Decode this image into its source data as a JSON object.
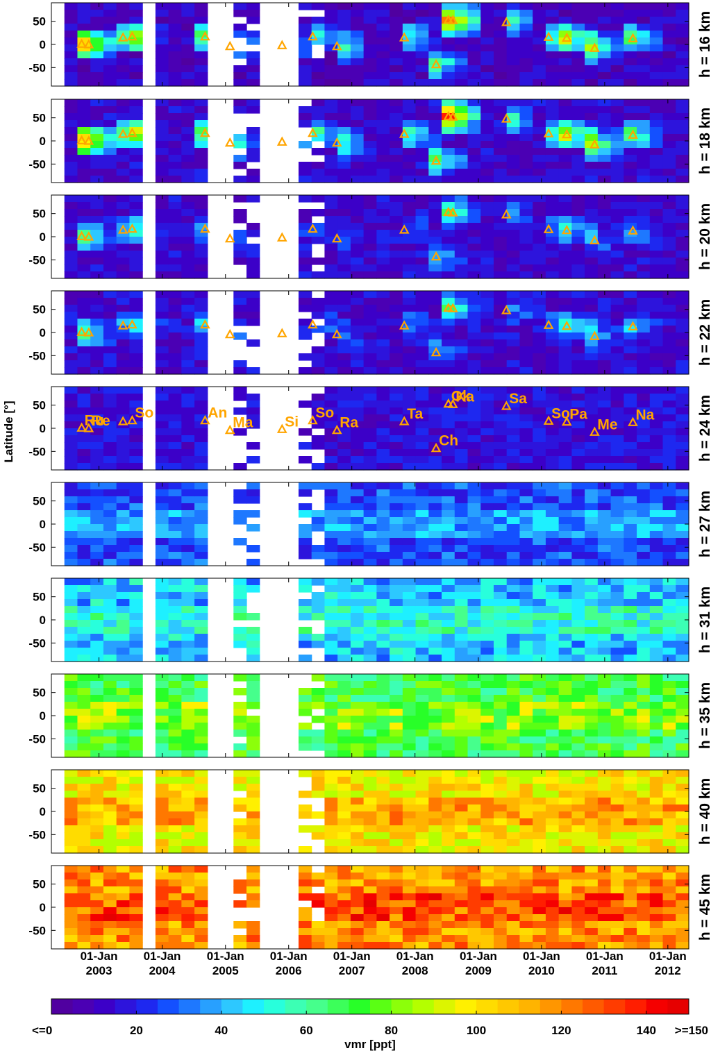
{
  "chart_data": {
    "type": "heatmap",
    "y_axis_label": "Latitude [°]",
    "y_ticks": [
      50,
      0,
      -50
    ],
    "y_range": [
      -90,
      90
    ],
    "x_range": [
      "2002-04-01",
      "2012-05-01"
    ],
    "x_ticks": [
      {
        "date": "2003-01-01",
        "label_top": "01-Jan",
        "label_bottom": "2003"
      },
      {
        "date": "2004-01-01",
        "label_top": "01-Jan",
        "label_bottom": "2004"
      },
      {
        "date": "2005-01-01",
        "label_top": "01-Jan",
        "label_bottom": "2005"
      },
      {
        "date": "2006-01-01",
        "label_top": "01-Jan",
        "label_bottom": "2006"
      },
      {
        "date": "2007-01-01",
        "label_top": "01-Jan",
        "label_bottom": "2007"
      },
      {
        "date": "2008-01-01",
        "label_top": "01-Jan",
        "label_bottom": "2008"
      },
      {
        "date": "2009-01-01",
        "label_top": "01-Jan",
        "label_bottom": "2009"
      },
      {
        "date": "2010-01-01",
        "label_top": "01-Jan",
        "label_bottom": "2010"
      },
      {
        "date": "2011-01-01",
        "label_top": "01-Jan",
        "label_bottom": "2011"
      },
      {
        "date": "2012-01-01",
        "label_top": "01-Jan",
        "label_bottom": "2012"
      }
    ],
    "panels": [
      {
        "label": "h = 16 km",
        "altitude_km": 16
      },
      {
        "label": "h = 18 km",
        "altitude_km": 18
      },
      {
        "label": "h = 20 km",
        "altitude_km": 20
      },
      {
        "label": "h = 22 km",
        "altitude_km": 22
      },
      {
        "label": "h = 24 km",
        "altitude_km": 24
      },
      {
        "label": "h = 27 km",
        "altitude_km": 27
      },
      {
        "label": "h = 31 km",
        "altitude_km": 31
      },
      {
        "label": "h = 35 km",
        "altitude_km": 35
      },
      {
        "label": "h = 40 km",
        "altitude_km": 40
      },
      {
        "label": "h = 45 km",
        "altitude_km": 45
      }
    ],
    "labeled_panel_altitude_km": 24,
    "marker_color": "#ffa500",
    "volcano_events": [
      {
        "label": "Ru",
        "date": "2002-09-23",
        "lat": 1
      },
      {
        "label": "Re",
        "date": "2002-11-03",
        "lat": 0
      },
      {
        "label": "",
        "date": "2003-05-20",
        "lat": 15
      },
      {
        "label": "So",
        "date": "2003-07-12",
        "lat": 17
      },
      {
        "label": "An",
        "date": "2004-09-05",
        "lat": 17
      },
      {
        "label": "Ma",
        "date": "2005-01-27",
        "lat": -4
      },
      {
        "label": "Si",
        "date": "2005-11-24",
        "lat": -2
      },
      {
        "label": "So",
        "date": "2006-05-20",
        "lat": 17
      },
      {
        "label": "Ra",
        "date": "2006-10-07",
        "lat": -4
      },
      {
        "label": "Ta",
        "date": "2007-10-31",
        "lat": 15
      },
      {
        "label": "Ch",
        "date": "2008-05-02",
        "lat": -43
      },
      {
        "label": "Ok",
        "date": "2008-07-12",
        "lat": 53
      },
      {
        "label": "Ka",
        "date": "2008-08-07",
        "lat": 52
      },
      {
        "label": "Sa",
        "date": "2009-06-12",
        "lat": 48
      },
      {
        "label": "So",
        "date": "2010-02-11",
        "lat": 16
      },
      {
        "label": "Pa",
        "date": "2010-05-27",
        "lat": 14
      },
      {
        "label": "Me",
        "date": "2010-11-04",
        "lat": -8
      },
      {
        "label": "Na",
        "date": "2011-06-13",
        "lat": 13
      }
    ],
    "gaps": [
      [
        "2002-04-01",
        "2002-07-10"
      ],
      [
        "2003-09-15",
        "2003-11-15"
      ],
      [
        "2004-09-01",
        "2005-01-10"
      ],
      [
        "2005-08-05",
        "2006-03-25"
      ]
    ],
    "colorbar": {
      "min": 0,
      "max": 150,
      "step": 5,
      "ticks": [
        {
          "value": 0,
          "label": "<=0"
        },
        {
          "value": 20,
          "label": "20"
        },
        {
          "value": 40,
          "label": "40"
        },
        {
          "value": 60,
          "label": "60"
        },
        {
          "value": 80,
          "label": "80"
        },
        {
          "value": 100,
          "label": "100"
        },
        {
          "value": 120,
          "label": "120"
        },
        {
          "value": 140,
          "label": "140"
        },
        {
          "value": 150,
          "label": ">=150"
        }
      ],
      "title": "vmr [ppt]",
      "colors": [
        "#5000a0",
        "#4b00b4",
        "#3c00c8",
        "#2d14dc",
        "#1e28f0",
        "#1450ff",
        "#1e78ff",
        "#28a0ff",
        "#2dc8ff",
        "#1ef0ff",
        "#28ffdc",
        "#3cffb4",
        "#46ff8c",
        "#3cff5a",
        "#28ff28",
        "#5aff14",
        "#8cff0a",
        "#b4ff00",
        "#dcf500",
        "#fff000",
        "#ffdc00",
        "#ffc800",
        "#ffb400",
        "#ff9600",
        "#ff7800",
        "#ff5a00",
        "#ff3c00",
        "#ff1e00",
        "#f50000",
        "#e60000"
      ]
    },
    "grid": false
  }
}
